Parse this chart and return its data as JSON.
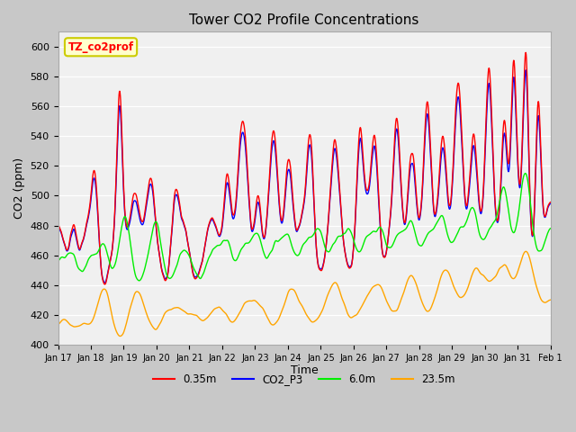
{
  "title": "Tower CO2 Profile Concentrations",
  "xlabel": "Time",
  "ylabel": "CO2 (ppm)",
  "ylim": [
    400,
    610
  ],
  "yticks": [
    400,
    420,
    440,
    460,
    480,
    500,
    520,
    540,
    560,
    580,
    600
  ],
  "fig_bg": "#c8c8c8",
  "plot_bg": "#f0f0f0",
  "annotation_text": "TZ_co2prof",
  "annotation_bg": "#ffffcc",
  "annotation_border": "#cccc00",
  "series_035_color": "#ff0000",
  "series_p3_color": "#0000ff",
  "series_6m_color": "#00ee00",
  "series_235_color": "#ffa500",
  "lw": 1.0,
  "xticklabels": [
    "Jan 17",
    "Jan 18",
    "Jan 19",
    "Jan 20",
    "Jan 21",
    "Jan 22",
    "Jan 23",
    "Jan 24",
    "Jan 25",
    "Jan 26",
    "Jan 27",
    "Jan 28",
    "Jan 29",
    "Jan 30",
    "Jan 31",
    "Feb 1"
  ],
  "n_points": 1536,
  "seed": 7
}
